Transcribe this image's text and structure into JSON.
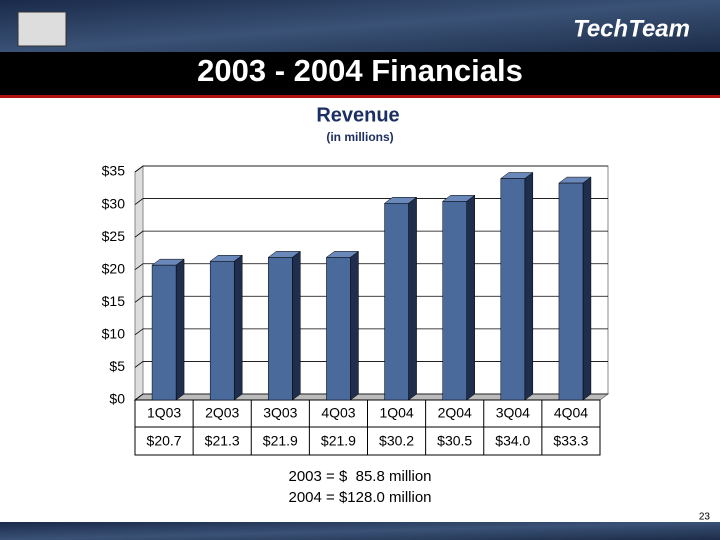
{
  "logo": "TechTeam",
  "slide_title": "2003 - 2004 Financials",
  "page_number": "23",
  "chart_data": {
    "type": "bar",
    "title": "Revenue",
    "subtitle": "(in millions)",
    "categories": [
      "1Q03",
      "2Q03",
      "3Q03",
      "4Q03",
      "1Q04",
      "2Q04",
      "3Q04",
      "4Q04"
    ],
    "values": [
      20.7,
      21.3,
      21.9,
      21.9,
      30.2,
      30.5,
      34.0,
      33.3
    ],
    "value_labels": [
      "$20.7",
      "$21.3",
      "$21.9",
      "$21.9",
      "$30.2",
      "$30.5",
      "$34.0",
      "$33.3"
    ],
    "color": "#4a6a9c",
    "ylim": [
      0,
      35
    ],
    "yticks": [
      {
        "value": 0,
        "label": "$0"
      },
      {
        "value": 5,
        "label": "$5"
      },
      {
        "value": 10,
        "label": "$10"
      },
      {
        "value": 15,
        "label": "$15"
      },
      {
        "value": 20,
        "label": "$20"
      },
      {
        "value": 25,
        "label": "$25"
      },
      {
        "value": 30,
        "label": "$30"
      },
      {
        "value": 35,
        "label": "$35"
      }
    ],
    "grid": true,
    "annotations": [
      "2003 = $  85.8 million",
      "2004 = $128.0 million"
    ]
  }
}
